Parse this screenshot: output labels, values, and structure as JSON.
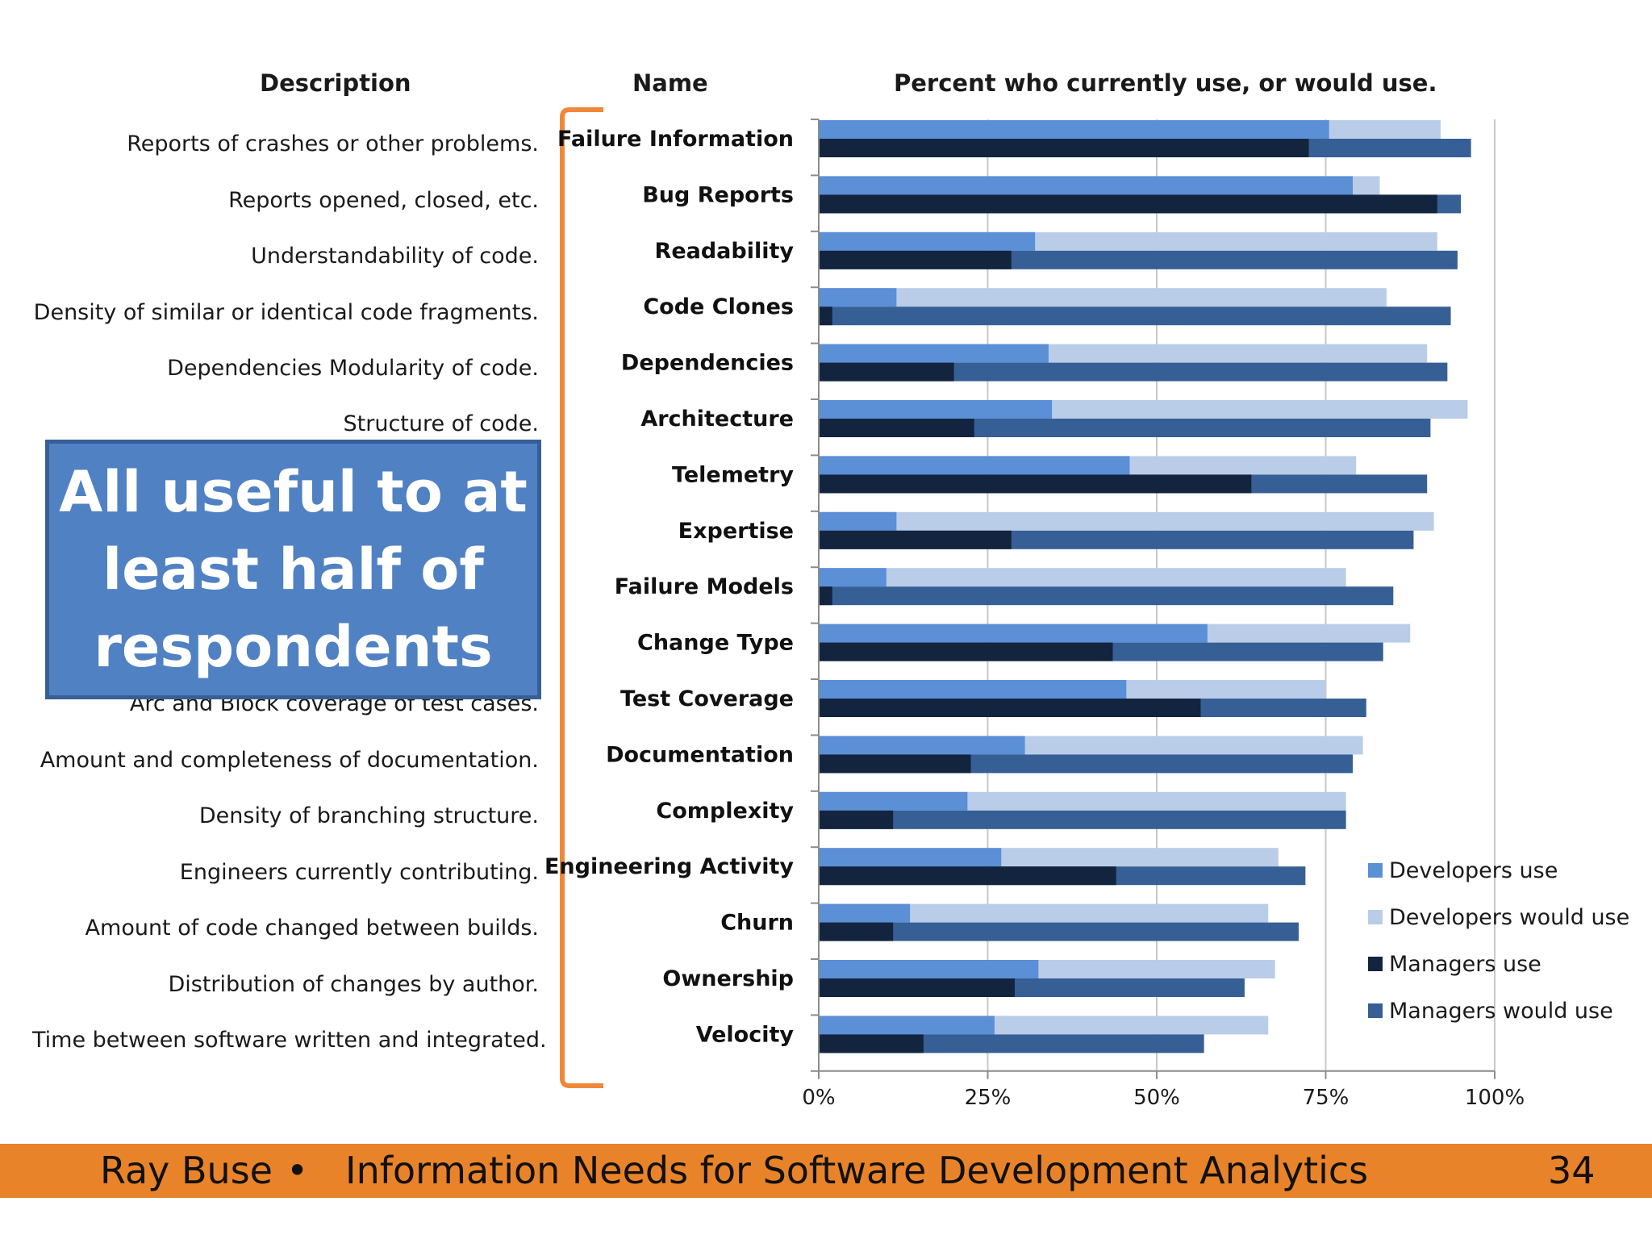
{
  "headers": {
    "description": "Description",
    "name": "Name",
    "chart_title": "Percent who currently use, or would use."
  },
  "descriptions": [
    "Reports of crashes or other problems.",
    "Reports opened, closed, etc.",
    "Understandability of code.",
    "Density of similar or identical code fragments.",
    "Dependencies Modularity of code.",
    "Structure of code.",
    "",
    "",
    "",
    "",
    "Arc and Block coverage of test cases.",
    "Amount and completeness of documentation.",
    "Density of branching structure.",
    "Engineers currently contributing.",
    "Amount of code changed between builds.",
    "Distribution of changes by author.",
    "Time between software written and integrated."
  ],
  "callout": "All useful to at least half of respondents",
  "footer": {
    "author": "Ray Buse",
    "bullet": "•",
    "title": "Information Needs for Software Development Analytics",
    "page": "34"
  },
  "colors": {
    "developers_use": "#5b8fd6",
    "developers_would_use": "#b9cde8",
    "managers_use": "#13243f",
    "managers_would_use": "#365f95",
    "bracket": "#f0883a",
    "footer": "#e8832a"
  },
  "chart_data": {
    "type": "bar",
    "orientation": "horizontal",
    "stacked": "grouped-stacked",
    "title": "Percent who currently use, or would use.",
    "categories": [
      "Failure Information",
      "Bug Reports",
      "Readability",
      "Code Clones",
      "Dependencies",
      "Architecture",
      "Telemetry",
      "Expertise",
      "Failure Models",
      "Change Type",
      "Test Coverage",
      "Documentation",
      "Complexity",
      "Engineering Activity",
      "Churn",
      "Ownership",
      "Velocity"
    ],
    "xlim": [
      0,
      100
    ],
    "ticks": [
      "0%",
      "25%",
      "50%",
      "75%",
      "100%"
    ],
    "tick_values": [
      0,
      25,
      50,
      75,
      100
    ],
    "series": [
      {
        "name": "Developers use",
        "group": "developers",
        "values": [
          75.5,
          79,
          32,
          11.5,
          34,
          34.5,
          46,
          11.5,
          10,
          57.5,
          45.5,
          30.5,
          22,
          27,
          13.5,
          32.5,
          26
        ]
      },
      {
        "name": "Developers would use",
        "group": "developers",
        "values": [
          92,
          83,
          91.5,
          84,
          90,
          96,
          79.5,
          91,
          78,
          87.5,
          75,
          80.5,
          78,
          68,
          66.5,
          67.5,
          66.5
        ]
      },
      {
        "name": "Managers use",
        "group": "managers",
        "values": [
          72.5,
          91.5,
          28.5,
          2,
          20,
          23,
          64,
          28.5,
          2,
          43.5,
          56.5,
          22.5,
          11,
          44,
          11,
          29,
          15.5
        ]
      },
      {
        "name": "Managers would use",
        "group": "managers",
        "values": [
          96.5,
          95,
          94.5,
          93.5,
          93,
          90.5,
          90,
          88,
          85,
          83.5,
          81,
          79,
          78,
          72,
          71,
          63,
          57
        ]
      }
    ],
    "legend": [
      "Developers use",
      "Developers would use",
      "Managers use",
      "Managers would use"
    ],
    "legend_position": "bottom-right",
    "grid": true
  }
}
